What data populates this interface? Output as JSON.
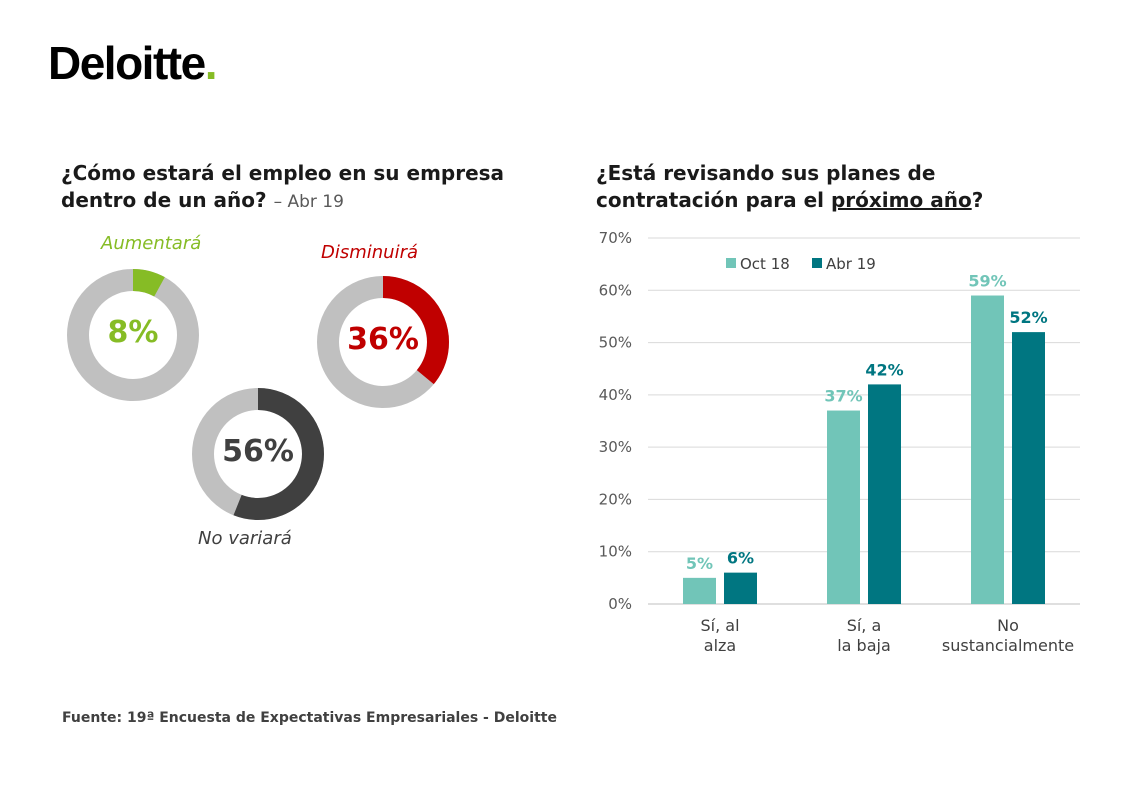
{
  "logo": {
    "text": "Deloitte",
    "dot": "."
  },
  "left_panel": {
    "question": "¿Cómo estará el empleo en su empresa dentro de un año?",
    "suffix": "– Abr 19",
    "donuts": [
      {
        "label": "Aumentará",
        "value": 8,
        "value_text": "8%",
        "color": "#86bc25",
        "label_color": "#86bc25"
      },
      {
        "label": "Disminuirá",
        "value": 36,
        "value_text": "36%",
        "color": "#c00000",
        "label_color": "#c00000"
      },
      {
        "label": "No variará",
        "value": 56,
        "value_text": "56%",
        "color": "#404040",
        "label_color": "#404040"
      }
    ],
    "track_color": "#c0c0c0"
  },
  "right_panel": {
    "question_part1": "¿Está revisando sus planes de contratación para el ",
    "question_underlined": "próximo año",
    "question_end": "?"
  },
  "chart_data": {
    "type": "bar",
    "categories": [
      [
        "Sí, al",
        "alza"
      ],
      [
        "Sí, a",
        "la baja"
      ],
      [
        "No",
        "sustancialmente"
      ]
    ],
    "series": [
      {
        "name": "Oct 18",
        "values": [
          5,
          37,
          59
        ],
        "labels": [
          "5%",
          "37%",
          "59%"
        ],
        "color": "#71c5b8"
      },
      {
        "name": "Abr 19",
        "values": [
          6,
          42,
          52
        ],
        "labels": [
          "6%",
          "42%",
          "52%"
        ],
        "color": "#007681"
      }
    ],
    "ylim": [
      0,
      70
    ],
    "yticks": [
      "0%",
      "10%",
      "20%",
      "30%",
      "40%",
      "50%",
      "60%",
      "70%"
    ],
    "grid": true,
    "legend": "top"
  },
  "source": "Fuente: 19ª Encuesta de Expectativas Empresariales - Deloitte"
}
